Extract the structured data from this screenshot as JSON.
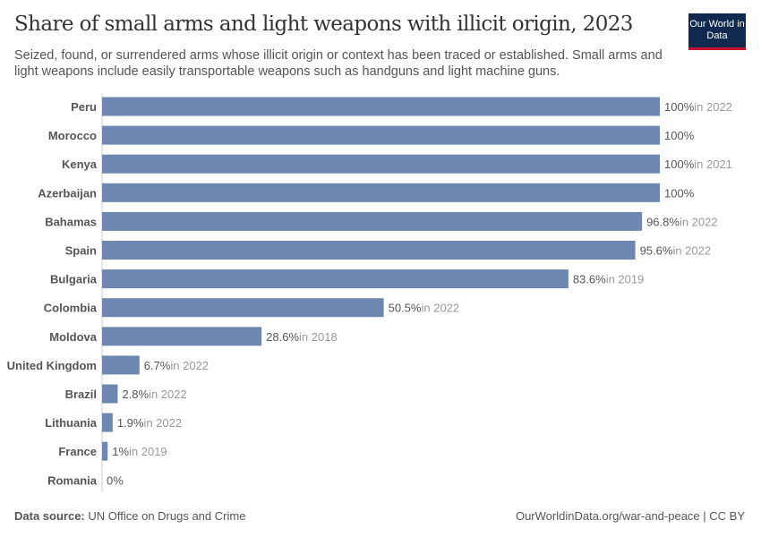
{
  "header": {
    "title": "Share of small arms and light weapons with illicit origin, 2023",
    "subtitle": "Seized, found, or surrendered arms whose illicit origin or context has been traced or established. Small arms and light weapons include easily transportable weapons such as handguns and light machine guns.",
    "logo": "Our World in Data"
  },
  "footer": {
    "source_label": "Data source:",
    "source": "UN Office on Drugs and Crime",
    "link": "OurWorldinData.org/war-and-peace | CC BY"
  },
  "colors": {
    "bar": "#6d87b1",
    "year_note": "#999999",
    "value": "#555555"
  },
  "chart_data": {
    "type": "bar",
    "orientation": "horizontal",
    "xlim": [
      0,
      100
    ],
    "unit": "%",
    "categories": [
      "Peru",
      "Morocco",
      "Kenya",
      "Azerbaijan",
      "Bahamas",
      "Spain",
      "Bulgaria",
      "Colombia",
      "Moldova",
      "United Kingdom",
      "Brazil",
      "Lithuania",
      "France",
      "Romania"
    ],
    "values": [
      100,
      100,
      100,
      100,
      96.8,
      95.6,
      83.6,
      50.5,
      28.6,
      6.7,
      2.8,
      1.9,
      1,
      0
    ],
    "value_labels": [
      "100%",
      "100%",
      "100%",
      "100%",
      "96.8%",
      "95.6%",
      "83.6%",
      "50.5%",
      "28.6%",
      "6.7%",
      "2.8%",
      "1.9%",
      "1%",
      "0%"
    ],
    "year_notes": [
      "in 2022",
      "",
      "in 2021",
      "",
      "in 2022",
      "in 2022",
      "in 2019",
      "in 2022",
      "in 2018",
      "in 2022",
      "in 2022",
      "in 2022",
      "in 2019",
      ""
    ]
  }
}
